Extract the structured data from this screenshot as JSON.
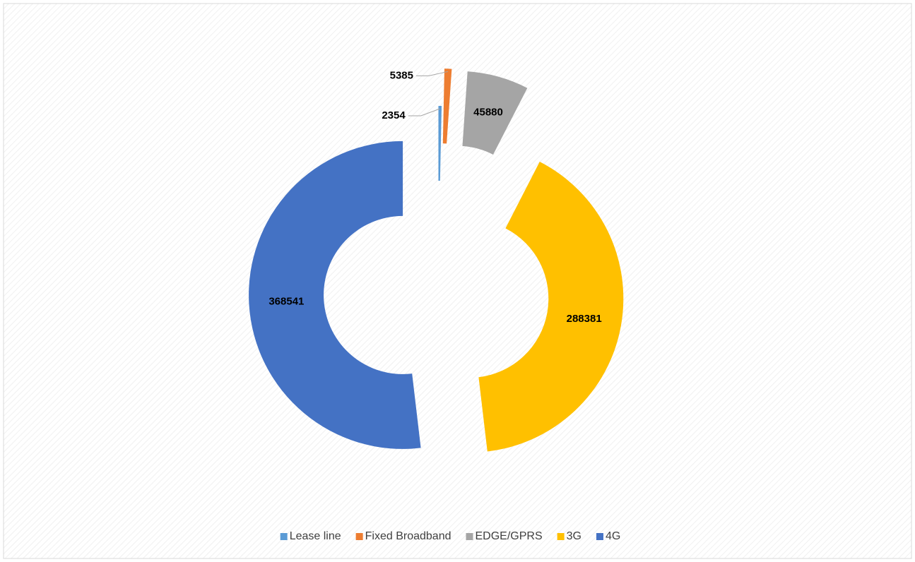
{
  "chart_data": {
    "type": "doughnut",
    "categories": [
      "Lease line",
      "Fixed Broadband",
      "EDGE/GPRS",
      "3G",
      "4G"
    ],
    "values": [
      2354,
      5385,
      45880,
      288381,
      368541
    ],
    "colors": [
      "#5b9bd5",
      "#ed7d31",
      "#a5a5a5",
      "#ffc000",
      "#4472c4"
    ],
    "legend": "bottom"
  }
}
